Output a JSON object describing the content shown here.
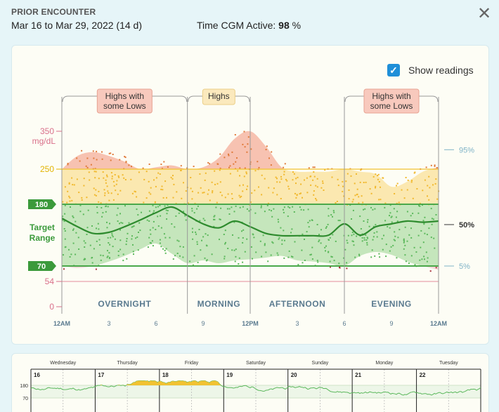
{
  "header": {
    "title": "PRIOR ENCOUNTER",
    "date_range": "Mar 16 to Mar 29, 2022 (14 d)",
    "cgm_label": "Time CGM Active:",
    "cgm_value": "98",
    "cgm_unit": "%",
    "close_icon": "close-icon"
  },
  "controls": {
    "show_readings_label": "Show readings",
    "show_readings_checked": true
  },
  "colors": {
    "high": "#f6b7a4",
    "elevated": "#fbe6a8",
    "target": "#bfe3b6",
    "median": "#2e8b2e",
    "target_line": "#4aa84a",
    "high_line": "#f1c232",
    "low_line": "#e9a3ad",
    "dot_high": "#e07a3a",
    "dot_elev": "#f1b82d",
    "dot_target": "#5cb85c",
    "dot_low": "#a8303b"
  },
  "chart_data": [
    {
      "type": "area",
      "y_ticks": [
        "350",
        "250",
        "54",
        "0"
      ],
      "y_unit": "mg/dL",
      "target_badges": [
        "180",
        "70"
      ],
      "target_label": [
        "Target",
        "Range"
      ],
      "percentile_labels": [
        "95%",
        "50%",
        "5%"
      ],
      "x_ticks": [
        "12AM",
        "3",
        "6",
        "9",
        "12PM",
        "3",
        "6",
        "9",
        "12AM"
      ],
      "x_hours": [
        0,
        3,
        6,
        9,
        12,
        15,
        18,
        21,
        24
      ],
      "ylim": [
        0,
        400
      ],
      "periods": [
        {
          "name": "OVERNIGHT",
          "start": 0,
          "end": 8
        },
        {
          "name": "MORNING",
          "start": 8,
          "end": 12
        },
        {
          "name": "AFTERNOON",
          "start": 12,
          "end": 18
        },
        {
          "name": "EVENING",
          "start": 18,
          "end": 24
        }
      ],
      "pattern_badges": [
        {
          "text": [
            "Highs with",
            "some Lows"
          ],
          "period": "OVERNIGHT",
          "type": "danger"
        },
        {
          "text": [
            "Highs"
          ],
          "period": "MORNING",
          "type": "warn"
        },
        {
          "text": [
            "Highs with",
            "some Lows"
          ],
          "period": "EVENING",
          "type": "danger"
        }
      ],
      "series": [
        {
          "name": "95%",
          "x": [
            0,
            1,
            2,
            3,
            4,
            5,
            6,
            7,
            8,
            9,
            10,
            11,
            12,
            13,
            14,
            15,
            16,
            17,
            18,
            19,
            20,
            21,
            22,
            23,
            24
          ],
          "values": [
            250,
            285,
            295,
            285,
            270,
            250,
            255,
            260,
            250,
            255,
            280,
            330,
            350,
            310,
            255,
            245,
            245,
            245,
            250,
            245,
            240,
            215,
            225,
            245,
            255
          ]
        },
        {
          "name": "50%",
          "x": [
            0,
            1,
            2,
            3,
            4,
            5,
            6,
            7,
            8,
            9,
            10,
            11,
            12,
            13,
            14,
            15,
            16,
            17,
            18,
            19,
            20,
            21,
            22,
            23,
            24
          ],
          "values": [
            155,
            140,
            128,
            130,
            140,
            152,
            165,
            175,
            160,
            145,
            138,
            150,
            140,
            128,
            124,
            124,
            124,
            125,
            145,
            125,
            140,
            145,
            150,
            148,
            150
          ]
        },
        {
          "name": "5%",
          "x": [
            0,
            1,
            2,
            3,
            4,
            5,
            6,
            7,
            8,
            9,
            10,
            11,
            12,
            13,
            14,
            15,
            16,
            17,
            18,
            19,
            20,
            21,
            22,
            23,
            24
          ],
          "values": [
            70,
            68,
            70,
            78,
            88,
            100,
            110,
            92,
            75,
            80,
            75,
            80,
            82,
            85,
            88,
            80,
            78,
            75,
            70,
            88,
            95,
            90,
            78,
            70,
            66
          ]
        }
      ]
    },
    {
      "type": "line",
      "day_names": [
        "Wednesday",
        "Thursday",
        "Friday",
        "Saturday",
        "Sunday",
        "Monday",
        "Tuesday"
      ],
      "day_numbers": [
        "16",
        "17",
        "18",
        "19",
        "20",
        "21",
        "22"
      ],
      "y_ticks": [
        "180",
        "70"
      ]
    }
  ]
}
